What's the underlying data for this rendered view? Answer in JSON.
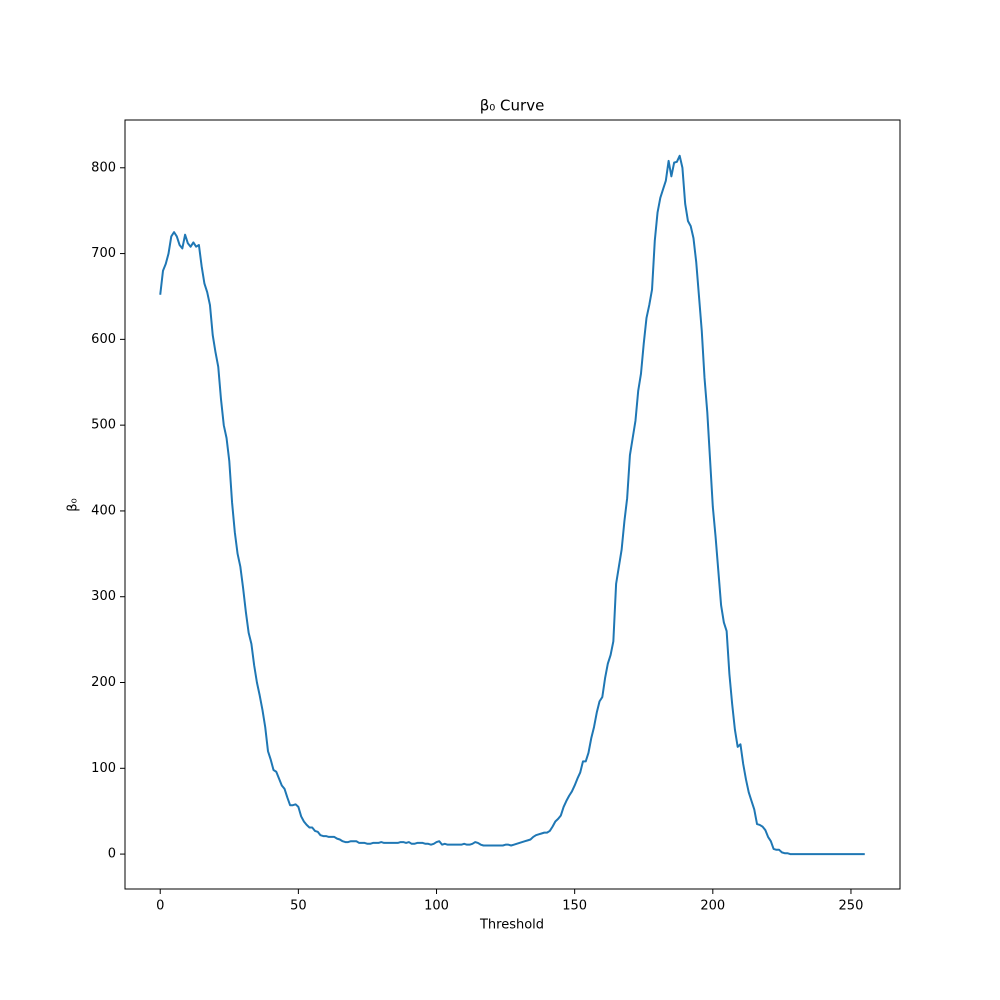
{
  "chart_data": {
    "type": "line",
    "title": "β₀ Curve",
    "x_label": "Threshold",
    "y_label": "β₀",
    "x": [
      0,
      1,
      2,
      3,
      4,
      5,
      6,
      7,
      8,
      9,
      10,
      11,
      12,
      13,
      14,
      15,
      16,
      17,
      18,
      19,
      20,
      21,
      22,
      23,
      24,
      25,
      26,
      27,
      28,
      29,
      30,
      31,
      32,
      33,
      34,
      35,
      36,
      37,
      38,
      39,
      40,
      41,
      42,
      43,
      44,
      45,
      46,
      47,
      48,
      49,
      50,
      51,
      52,
      53,
      54,
      55,
      56,
      57,
      58,
      59,
      60,
      61,
      62,
      63,
      64,
      65,
      66,
      67,
      68,
      69,
      70,
      71,
      72,
      73,
      74,
      75,
      76,
      77,
      78,
      79,
      80,
      81,
      82,
      83,
      84,
      85,
      86,
      87,
      88,
      89,
      90,
      91,
      92,
      93,
      94,
      95,
      96,
      97,
      98,
      99,
      100,
      101,
      102,
      103,
      104,
      105,
      106,
      107,
      108,
      109,
      110,
      111,
      112,
      113,
      114,
      115,
      116,
      117,
      118,
      119,
      120,
      121,
      122,
      123,
      124,
      125,
      126,
      127,
      128,
      129,
      130,
      131,
      132,
      133,
      134,
      135,
      136,
      137,
      138,
      139,
      140,
      141,
      142,
      143,
      144,
      145,
      146,
      147,
      148,
      149,
      150,
      151,
      152,
      153,
      154,
      155,
      156,
      157,
      158,
      159,
      160,
      161,
      162,
      163,
      164,
      165,
      166,
      167,
      168,
      169,
      170,
      171,
      172,
      173,
      174,
      175,
      176,
      177,
      178,
      179,
      180,
      181,
      182,
      183,
      184,
      185,
      186,
      187,
      188,
      189,
      190,
      191,
      192,
      193,
      194,
      195,
      196,
      197,
      198,
      199,
      200,
      201,
      202,
      203,
      204,
      205,
      206,
      207,
      208,
      209,
      210,
      211,
      212,
      213,
      214,
      215,
      216,
      217,
      218,
      219,
      220,
      221,
      222,
      223,
      224,
      225,
      226,
      227,
      228,
      229,
      230,
      231,
      232,
      233,
      234,
      235,
      236,
      237,
      238,
      239,
      240,
      241,
      242,
      243,
      244,
      245,
      246,
      247,
      248,
      249,
      250,
      251,
      252,
      253,
      254,
      255
    ],
    "series": [
      {
        "color": "#1f77b4",
        "values": [
          652,
          680,
          688,
          700,
          720,
          725,
          720,
          710,
          706,
          722,
          712,
          708,
          713,
          708,
          710,
          685,
          665,
          655,
          640,
          605,
          585,
          568,
          530,
          500,
          485,
          458,
          410,
          375,
          350,
          335,
          310,
          282,
          258,
          245,
          220,
          200,
          185,
          168,
          148,
          120,
          110,
          98,
          96,
          88,
          80,
          76,
          66,
          57,
          57,
          58,
          55,
          44,
          38,
          34,
          31,
          31,
          27,
          26,
          22,
          21,
          21,
          20,
          20,
          20,
          18,
          17,
          15,
          14,
          14,
          15,
          15,
          15,
          13,
          13,
          13,
          12,
          12,
          13,
          13,
          13,
          14,
          13,
          13,
          13,
          13,
          13,
          13,
          14,
          14,
          13,
          14,
          12,
          12,
          13,
          13,
          13,
          12,
          12,
          11,
          12,
          14,
          15,
          11,
          12,
          11,
          11,
          11,
          11,
          11,
          11,
          12,
          11,
          11,
          12,
          14,
          13,
          11,
          10,
          10,
          10,
          10,
          10,
          10,
          10,
          10,
          11,
          11,
          10,
          11,
          12,
          13,
          14,
          15,
          16,
          17,
          20,
          22,
          23,
          24,
          25,
          25,
          27,
          32,
          38,
          41,
          45,
          55,
          62,
          68,
          73,
          80,
          88,
          95,
          108,
          108,
          118,
          135,
          148,
          165,
          178,
          183,
          205,
          222,
          232,
          248,
          315,
          335,
          355,
          388,
          415,
          465,
          485,
          505,
          540,
          560,
          595,
          625,
          640,
          658,
          715,
          748,
          765,
          775,
          785,
          808,
          790,
          806,
          807,
          814,
          800,
          758,
          738,
          732,
          718,
          690,
          650,
          610,
          555,
          515,
          460,
          405,
          370,
          330,
          290,
          270,
          260,
          210,
          175,
          145,
          125,
          128,
          105,
          87,
          72,
          62,
          52,
          35,
          34,
          32,
          28,
          20,
          15,
          6,
          5,
          5,
          2,
          1,
          1,
          0,
          0,
          0,
          0,
          0,
          0,
          0,
          0,
          0,
          0,
          0,
          0,
          0,
          0,
          0,
          0,
          0,
          0,
          0,
          0,
          0,
          0,
          0,
          0,
          0,
          0,
          0,
          0
        ]
      }
    ],
    "xlim": [
      -12.75,
      267.75
    ],
    "ylim": [
      -40.7,
      855.7
    ],
    "xticks": [
      0,
      50,
      100,
      150,
      200,
      250
    ],
    "yticks": [
      0,
      100,
      200,
      300,
      400,
      500,
      600,
      700,
      800
    ],
    "grid": false
  }
}
